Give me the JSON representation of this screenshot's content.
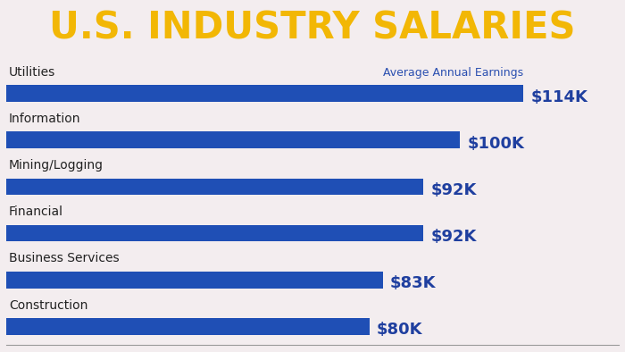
{
  "chart_data": {
    "type": "bar",
    "orientation": "horizontal",
    "title": "U.S. INDUSTRY SALARIES",
    "annotation": "Average Annual Earnings",
    "categories": [
      "Utilities",
      "Information",
      "Mining/Logging",
      "Financial",
      "Business Services",
      "Construction"
    ],
    "values": [
      114000,
      100000,
      92000,
      92000,
      83000,
      80000
    ],
    "value_labels": [
      "$114K",
      "$100K",
      "$92K",
      "$92K",
      "$83K",
      "$80K"
    ],
    "data_labels": true,
    "color": "#1f4fb5",
    "xlim": [
      0,
      135000
    ],
    "tick_labels": false,
    "grid": false
  }
}
